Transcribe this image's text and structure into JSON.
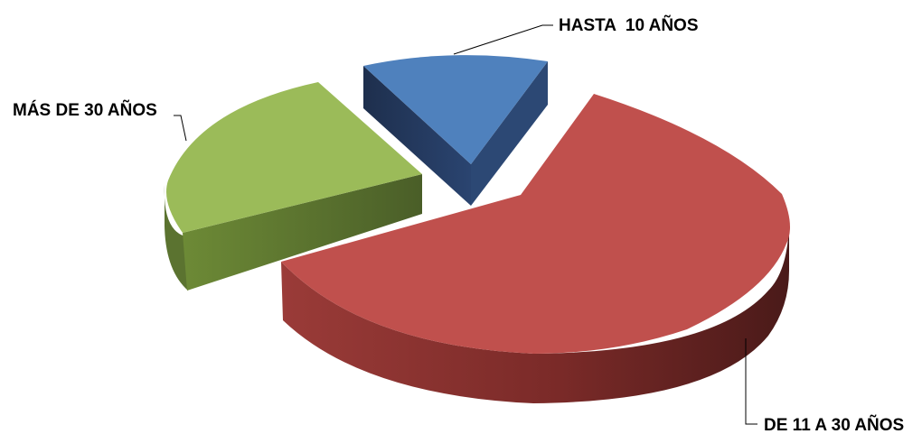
{
  "chart_data": {
    "type": "pie",
    "style": "3d-exploded",
    "title": "",
    "legend": "none",
    "slices": [
      {
        "label": "HASTA  10 AÑOS",
        "value": 14,
        "color": "#4F81BD"
      },
      {
        "label": "DE 11 A 30 AÑOS",
        "value": 61,
        "color": "#C0504D"
      },
      {
        "label": "MÁS DE 30 AÑOS",
        "value": 25,
        "color": "#9BBB59"
      }
    ]
  }
}
